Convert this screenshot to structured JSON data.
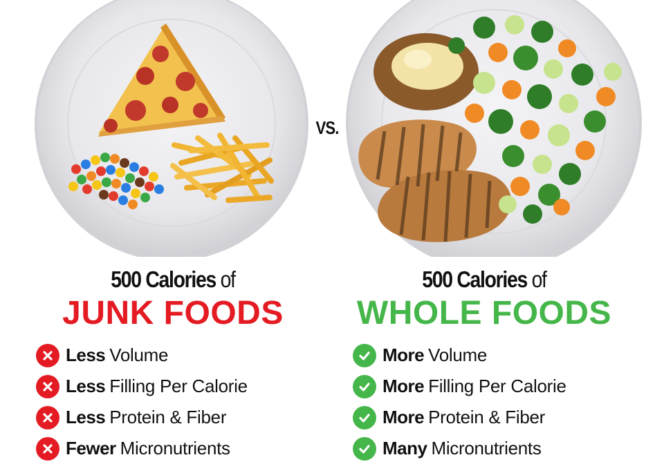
{
  "vs_label": "VS.",
  "left": {
    "headline_strong": "500 Calories",
    "headline_rest": "of",
    "title": "JUNK FOODS",
    "title_color": "#e41b23",
    "points": [
      {
        "icon": "x-circle-icon",
        "strong": "Less",
        "text": "Volume"
      },
      {
        "icon": "x-circle-icon",
        "strong": "Less",
        "text": "Filling Per Calorie"
      },
      {
        "icon": "x-circle-icon",
        "strong": "Less",
        "text": "Protein & Fiber"
      },
      {
        "icon": "x-circle-icon",
        "strong": "Fewer",
        "text": "Micronutrients"
      }
    ]
  },
  "right": {
    "headline_strong": "500 Calories",
    "headline_rest": "of",
    "title": "WHOLE FOODS",
    "title_color": "#45b649",
    "points": [
      {
        "icon": "check-circle-icon",
        "strong": "More",
        "text": "Volume"
      },
      {
        "icon": "check-circle-icon",
        "strong": "More",
        "text": "Filling Per Calorie"
      },
      {
        "icon": "check-circle-icon",
        "strong": "More",
        "text": "Protein & Fiber"
      },
      {
        "icon": "check-circle-icon",
        "strong": "Many",
        "text": "Micronutrients"
      }
    ]
  }
}
